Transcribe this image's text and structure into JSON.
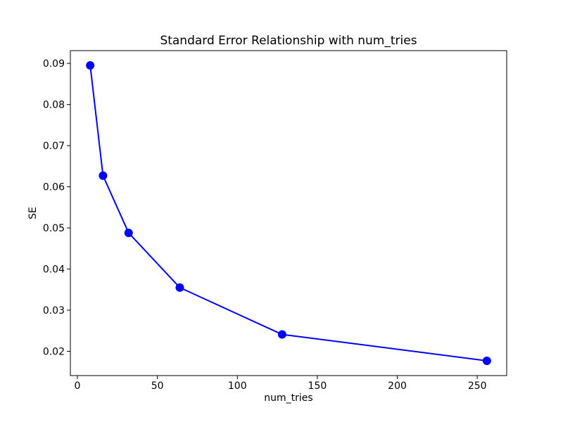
{
  "figure": {
    "background": "#ffffff",
    "plot_border_color": "#000000",
    "text_color": "#000000"
  },
  "chart_data": {
    "type": "line",
    "title": "Standard Error Relationship with num_tries",
    "xlabel": "num_tries",
    "ylabel": "SE",
    "x": [
      8,
      16,
      32,
      64,
      128,
      256
    ],
    "y": [
      0.0895,
      0.0627,
      0.0488,
      0.0355,
      0.0241,
      0.0177
    ],
    "series_name": "SE vs num_tries",
    "series_color": "#0000ff",
    "marker": "circle",
    "marker_radius": 6,
    "line_width": 2,
    "xlim": [
      -4.4,
      268.4
    ],
    "ylim": [
      0.0141,
      0.0931
    ],
    "xtick_values": [
      0,
      50,
      100,
      150,
      200,
      250
    ],
    "xtick_labels": [
      "0",
      "50",
      "100",
      "150",
      "200",
      "250"
    ],
    "ytick_values": [
      0.02,
      0.03,
      0.04,
      0.05,
      0.06,
      0.07,
      0.08,
      0.09
    ],
    "ytick_labels": [
      "0.02",
      "0.03",
      "0.04",
      "0.05",
      "0.06",
      "0.07",
      "0.08",
      "0.09"
    ],
    "grid": false,
    "legend": null
  }
}
